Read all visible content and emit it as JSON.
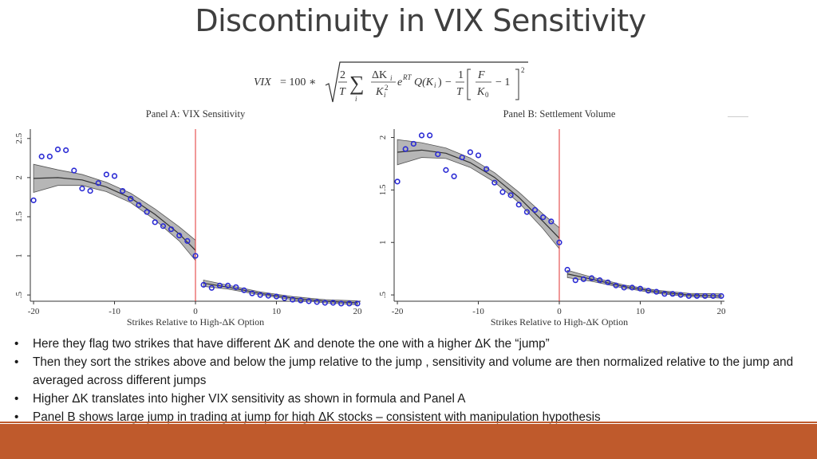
{
  "slide": {
    "title": "Discontinuity in VIX Sensitivity",
    "bullets": [
      "Here they flag two strikes that have different ΔK and denote the one with a higher ΔK the “jump”",
      "Then they sort the strikes above and below the jump relative to the jump , sensitivity and volume are then normalized relative to the jump and averaged across different jumps",
      "Higher ΔK  translates into higher VIX sensitivity as shown in formula and Panel A",
      "Panel B shows large jump in trading at jump for high ΔK stocks – consistent with manipulation hypothesis"
    ],
    "bullet_glyph": "•",
    "colors": {
      "accent": "#bf5a2c",
      "points": "#2a2ad4",
      "jump_line": "#e03030",
      "band": "#a9a9a9"
    }
  },
  "formula": {
    "lhs": "VIX",
    "equals": "= 100 ∗",
    "two": "2",
    "T": "T",
    "sum_index": "i",
    "dK": "ΔK",
    "dK_sub": "i",
    "K2": "K",
    "K2_sub": "i",
    "K2_sup": "2",
    "exp": "e",
    "exp_sup": "RT",
    "Q": "Q(K",
    "Q_sub": "i",
    "Q_close": ")",
    "minus": "−",
    "one": "1",
    "F": "F",
    "K0": "K",
    "K0_sub": "0",
    "minus_one": "− 1",
    "square": "2"
  },
  "chart_data": [
    {
      "type": "scatter",
      "title": "Panel A: VIX Sensitivity",
      "xlabel": "Strikes Relative to High-ΔK Option",
      "ylabel": "",
      "xlim": [
        -20.4,
        20.4
      ],
      "ylim": [
        0.42,
        2.62
      ],
      "xticks": [
        -20,
        -10,
        0,
        10,
        20
      ],
      "yticks": [
        0.5,
        1,
        1.5,
        2,
        2.5
      ],
      "ytick_labels": [
        ".5",
        "1",
        "1.5",
        "2",
        "2.5"
      ],
      "jump_x": 0,
      "grid": false,
      "legend": "none",
      "series": [
        {
          "x": [
            -20,
            -19,
            -18,
            -17,
            -16,
            -15,
            -14,
            -13,
            -12,
            -11,
            -10,
            -9,
            -8,
            -7,
            -6,
            -5,
            -4,
            -3,
            -2,
            -1,
            0
          ],
          "y": [
            1.71,
            2.27,
            2.27,
            2.36,
            2.35,
            2.09,
            1.86,
            1.83,
            1.93,
            2.04,
            2.02,
            1.83,
            1.73,
            1.65,
            1.56,
            1.43,
            1.38,
            1.34,
            1.26,
            1.19,
            1.0
          ]
        },
        {
          "x": [
            1,
            2,
            3,
            4,
            5,
            6,
            7,
            8,
            9,
            10,
            11,
            12,
            13,
            14,
            15,
            16,
            17,
            18,
            19,
            20
          ],
          "y": [
            0.63,
            0.59,
            0.62,
            0.62,
            0.6,
            0.56,
            0.52,
            0.5,
            0.49,
            0.48,
            0.46,
            0.44,
            0.43,
            0.42,
            0.41,
            0.4,
            0.4,
            0.39,
            0.39,
            0.39
          ]
        }
      ],
      "fits": [
        {
          "x": [
            -20,
            -17,
            -14,
            -11,
            -8,
            -5,
            -2,
            0
          ],
          "y": [
            1.99,
            2.0,
            1.97,
            1.88,
            1.74,
            1.53,
            1.28,
            1.07
          ],
          "band": [
            0.18,
            0.1,
            0.07,
            0.06,
            0.06,
            0.07,
            0.09,
            0.13
          ]
        },
        {
          "x": [
            1,
            4,
            8,
            12,
            16,
            20
          ],
          "y": [
            0.65,
            0.6,
            0.52,
            0.46,
            0.42,
            0.4
          ],
          "band": [
            0.04,
            0.025,
            0.02,
            0.02,
            0.02,
            0.025
          ]
        }
      ]
    },
    {
      "type": "scatter",
      "title": "Panel B: Settlement Volume",
      "xlabel": "Strikes Relative to High-ΔK Option",
      "ylabel": "",
      "xlim": [
        -20.4,
        20.4
      ],
      "ylim": [
        0.44,
        2.08
      ],
      "xticks": [
        -20,
        -10,
        0,
        10,
        20
      ],
      "yticks": [
        0.5,
        1,
        1.5,
        2
      ],
      "ytick_labels": [
        ".5",
        "1",
        "1.5",
        "2"
      ],
      "jump_x": 0,
      "grid": false,
      "legend": "none",
      "series": [
        {
          "x": [
            -20,
            -19,
            -18,
            -17,
            -16,
            -15,
            -14,
            -13,
            -12,
            -11,
            -10,
            -9,
            -8,
            -7,
            -6,
            -5,
            -4,
            -3,
            -2,
            -1,
            0
          ],
          "y": [
            1.58,
            1.89,
            1.94,
            2.02,
            2.02,
            1.84,
            1.69,
            1.63,
            1.81,
            1.86,
            1.83,
            1.7,
            1.57,
            1.48,
            1.45,
            1.36,
            1.29,
            1.31,
            1.24,
            1.2,
            1.0
          ]
        },
        {
          "x": [
            1,
            2,
            3,
            4,
            5,
            6,
            7,
            8,
            9,
            10,
            11,
            12,
            13,
            14,
            15,
            16,
            17,
            18,
            19,
            20
          ],
          "y": [
            0.74,
            0.64,
            0.65,
            0.66,
            0.64,
            0.62,
            0.59,
            0.57,
            0.57,
            0.56,
            0.54,
            0.53,
            0.51,
            0.51,
            0.5,
            0.49,
            0.49,
            0.49,
            0.49,
            0.49
          ]
        }
      ],
      "fits": [
        {
          "x": [
            -20,
            -17,
            -14,
            -11,
            -8,
            -5,
            -2,
            0
          ],
          "y": [
            1.86,
            1.88,
            1.85,
            1.76,
            1.62,
            1.43,
            1.2,
            1.04
          ],
          "band": [
            0.12,
            0.07,
            0.05,
            0.045,
            0.045,
            0.05,
            0.07,
            0.1
          ]
        },
        {
          "x": [
            1,
            4,
            8,
            12,
            16,
            20
          ],
          "y": [
            0.7,
            0.65,
            0.58,
            0.53,
            0.5,
            0.49
          ],
          "band": [
            0.035,
            0.02,
            0.015,
            0.015,
            0.015,
            0.02
          ]
        }
      ]
    }
  ]
}
